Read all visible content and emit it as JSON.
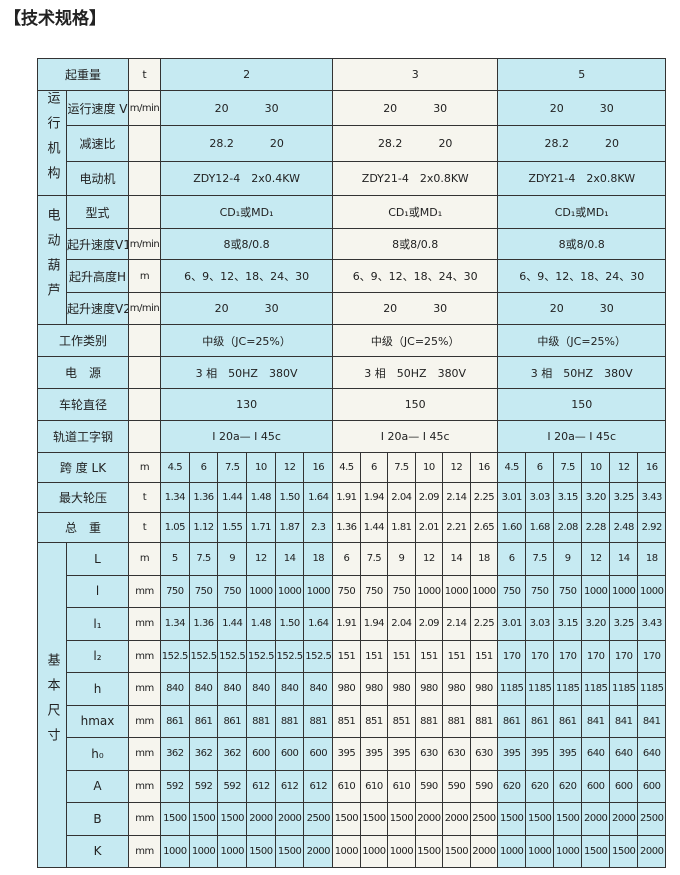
{
  "title": "【技术规格】",
  "colors": {
    "blue": "#c6eaf2",
    "cream": "#f6f5ee",
    "border": "#333333"
  },
  "header": {
    "label": "起重量",
    "unit": "t",
    "capacities": [
      "2",
      "3",
      "5"
    ]
  },
  "travel": {
    "group": "运行机构",
    "rows": [
      {
        "label": "运行速度 V",
        "unit": "m/min",
        "values": [
          [
            "20",
            "30"
          ],
          [
            "20",
            "30"
          ],
          [
            "20",
            "30"
          ]
        ]
      },
      {
        "label": "减速比",
        "unit": "",
        "values": [
          [
            "28.2",
            "20"
          ],
          [
            "28.2",
            "20"
          ],
          [
            "28.2",
            "20"
          ]
        ]
      },
      {
        "label": "电动机",
        "unit": "",
        "values": [
          "ZDY12-4　2x0.4KW",
          "ZDY21-4　2x0.8KW",
          "ZDY21-4　2x0.8KW"
        ]
      }
    ]
  },
  "hoist": {
    "group": "电动葫芦",
    "rows": [
      {
        "label": "型式",
        "unit": "",
        "values": [
          "CD₁或MD₁",
          "CD₁或MD₁",
          "CD₁或MD₁"
        ]
      },
      {
        "label": "起升速度V1",
        "unit": "m/min",
        "values": [
          "8或8/0.8",
          "8或8/0.8",
          "8或8/0.8"
        ]
      },
      {
        "label": "起升高度H",
        "unit": "m",
        "values": [
          "6、9、12、18、24、30",
          "6、9、12、18、24、30",
          "6、9、12、18、24、30"
        ]
      },
      {
        "label": "起升速度V2",
        "unit": "m/min",
        "values": [
          [
            "20",
            "30"
          ],
          [
            "20",
            "30"
          ],
          [
            "20",
            "30"
          ]
        ]
      }
    ]
  },
  "general": [
    {
      "label": "工作类别",
      "unit": "",
      "values": [
        "中级（JC=25%）",
        "中级（JC=25%）",
        "中级（JC=25%）"
      ]
    },
    {
      "label": "电　源",
      "unit": "",
      "values": [
        "3 相　50HZ　380V",
        "3 相　50HZ　380V",
        "3 相　50HZ　380V"
      ]
    },
    {
      "label": "车轮直径",
      "unit": "",
      "values": [
        "130",
        "150",
        "150"
      ]
    },
    {
      "label": "轨道工字钢",
      "unit": "",
      "values": [
        "I 20a— I 45c",
        "I 20a— I 45c",
        "I 20a— I 45c"
      ]
    }
  ],
  "span_rows": [
    {
      "label": "跨 度 LK",
      "unit": "m",
      "values": [
        "4.5",
        "6",
        "7.5",
        "10",
        "12",
        "16",
        "4.5",
        "6",
        "7.5",
        "10",
        "12",
        "16",
        "4.5",
        "6",
        "7.5",
        "10",
        "12",
        "16"
      ]
    },
    {
      "label": "最大轮压",
      "unit": "t",
      "values": [
        "1.34",
        "1.36",
        "1.44",
        "1.48",
        "1.50",
        "1.64",
        "1.91",
        "1.94",
        "2.04",
        "2.09",
        "2.14",
        "2.25",
        "3.01",
        "3.03",
        "3.15",
        "3.20",
        "3.25",
        "3.43"
      ]
    },
    {
      "label": "总　重",
      "unit": "t",
      "values": [
        "1.05",
        "1.12",
        "1.55",
        "1.71",
        "1.87",
        "2.3",
        "1.36",
        "1.44",
        "1.81",
        "2.01",
        "2.21",
        "2.65",
        "1.60",
        "1.68",
        "2.08",
        "2.28",
        "2.48",
        "2.92"
      ]
    }
  ],
  "dimensions": {
    "group": "基本尺寸",
    "rows": [
      {
        "label": "L",
        "unit": "m",
        "values": [
          "5",
          "7.5",
          "9",
          "12",
          "14",
          "18",
          "6",
          "7.5",
          "9",
          "12",
          "14",
          "18",
          "6",
          "7.5",
          "9",
          "12",
          "14",
          "18"
        ]
      },
      {
        "label": "l",
        "unit": "mm",
        "values": [
          "750",
          "750",
          "750",
          "1000",
          "1000",
          "1000",
          "750",
          "750",
          "750",
          "1000",
          "1000",
          "1000",
          "750",
          "750",
          "750",
          "1000",
          "1000",
          "1000"
        ]
      },
      {
        "label": "l₁",
        "unit": "mm",
        "values": [
          "1.34",
          "1.36",
          "1.44",
          "1.48",
          "1.50",
          "1.64",
          "1.91",
          "1.94",
          "2.04",
          "2.09",
          "2.14",
          "2.25",
          "3.01",
          "3.03",
          "3.15",
          "3.20",
          "3.25",
          "3.43"
        ]
      },
      {
        "label": "l₂",
        "unit": "mm",
        "values": [
          "152.5",
          "152.5",
          "152.5",
          "152.5",
          "152.5",
          "152.5",
          "151",
          "151",
          "151",
          "151",
          "151",
          "151",
          "170",
          "170",
          "170",
          "170",
          "170",
          "170"
        ]
      },
      {
        "label": "h",
        "unit": "mm",
        "values": [
          "840",
          "840",
          "840",
          "840",
          "840",
          "840",
          "980",
          "980",
          "980",
          "980",
          "980",
          "980",
          "1185",
          "1185",
          "1185",
          "1185",
          "1185",
          "1185"
        ]
      },
      {
        "label": "hmax",
        "unit": "mm",
        "values": [
          "861",
          "861",
          "861",
          "881",
          "881",
          "881",
          "851",
          "851",
          "851",
          "881",
          "881",
          "881",
          "861",
          "861",
          "861",
          "841",
          "841",
          "841"
        ]
      },
      {
        "label": "h₀",
        "unit": "mm",
        "values": [
          "362",
          "362",
          "362",
          "600",
          "600",
          "600",
          "395",
          "395",
          "395",
          "630",
          "630",
          "630",
          "395",
          "395",
          "395",
          "640",
          "640",
          "640"
        ]
      },
      {
        "label": "A",
        "unit": "mm",
        "values": [
          "592",
          "592",
          "592",
          "612",
          "612",
          "612",
          "610",
          "610",
          "610",
          "590",
          "590",
          "590",
          "620",
          "620",
          "620",
          "600",
          "600",
          "600"
        ]
      },
      {
        "label": "B",
        "unit": "mm",
        "values": [
          "1500",
          "1500",
          "1500",
          "2000",
          "2000",
          "2500",
          "1500",
          "1500",
          "1500",
          "2000",
          "2000",
          "2500",
          "1500",
          "1500",
          "1500",
          "2000",
          "2000",
          "2500"
        ]
      },
      {
        "label": "K",
        "unit": "mm",
        "values": [
          "1000",
          "1000",
          "1000",
          "1500",
          "1500",
          "2000",
          "1000",
          "1000",
          "1000",
          "1500",
          "1500",
          "2000",
          "1000",
          "1000",
          "1000",
          "1500",
          "1500",
          "2000"
        ]
      }
    ]
  }
}
